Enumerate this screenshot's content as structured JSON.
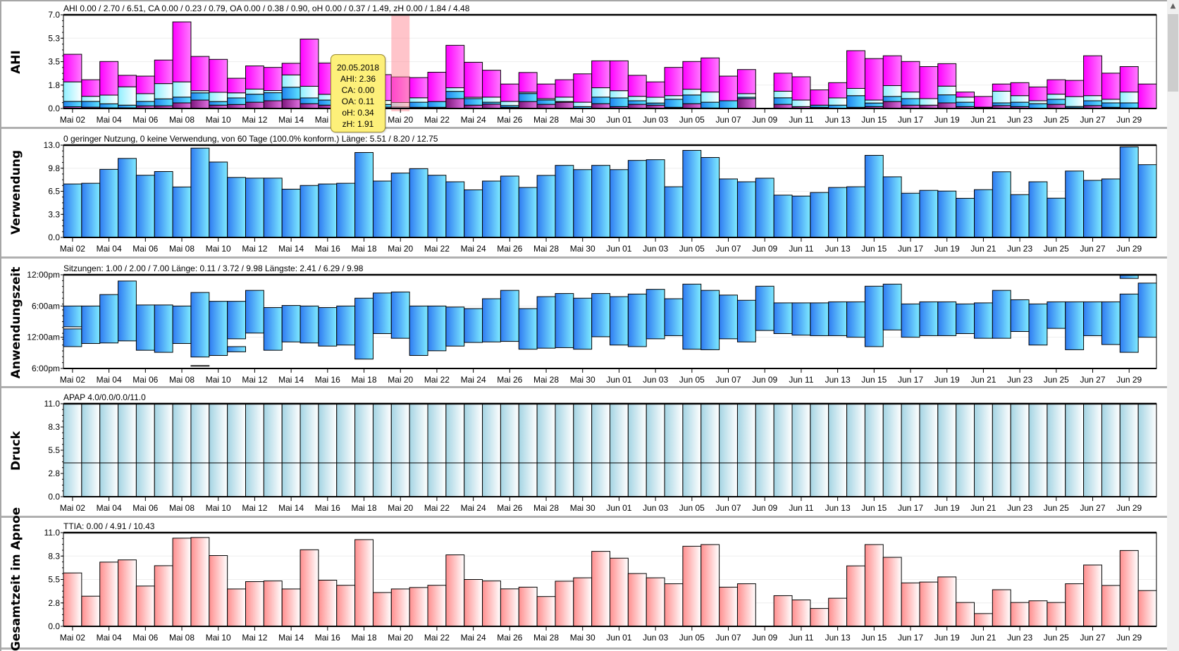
{
  "x_tick_labels": [
    "Mai 02",
    "Mai 04",
    "Mai 06",
    "Mai 08",
    "Mai 10",
    "Mai 12",
    "Mai 14",
    "Mai 16",
    "Mai 18",
    "Mai 20",
    "Mai 22",
    "Mai 24",
    "Mai 26",
    "Mai 28",
    "Mai 30",
    "Jun 01",
    "Jun 03",
    "Jun 05",
    "Jun 07",
    "Jun 09",
    "Jun 11",
    "Jun 13",
    "Jun 15",
    "Jun 17",
    "Jun 19",
    "Jun 21",
    "Jun 23",
    "Jun 25",
    "Jun 27",
    "Jun 29"
  ],
  "tooltip": {
    "date": "20.05.2018",
    "ahi": "AHI: 2.36",
    "ca": "CA: 0.00",
    "oa": "OA: 0.11",
    "oh": "oH: 0.34",
    "zh": "zH: 1.91",
    "highlight_day_index": 18
  },
  "colors": {
    "ca": "#8e1f8e",
    "oa": "#2a8ff0",
    "oh": "#a8f2fc",
    "zh": "#ff1cff",
    "usage": "#3b8cf5",
    "pressure": "#a9d9e6",
    "ttia": "#ff9c9c",
    "highlight": "#ff8a95"
  },
  "chart_data": [
    {
      "type": "bar",
      "stacked": true,
      "title": "AHI",
      "header": "AHI 0.00 / 2.70 / 6.51, CA 0.00 / 0.23 / 0.79, OA 0.00 / 0.38 / 0.90, oH 0.00 / 0.37 / 1.49, zH 0.00 / 1.84 / 4.48",
      "ylim": [
        0,
        7.0
      ],
      "y_ticks": [
        {
          "v": 0,
          "label": "0.0"
        },
        {
          "v": 1.75,
          "label": "1.8"
        },
        {
          "v": 3.5,
          "label": "3.5"
        },
        {
          "v": 5.25,
          "label": "5.3"
        },
        {
          "v": 7.0,
          "label": "7.0"
        }
      ],
      "series": [
        {
          "name": "CA",
          "color_key": "ca",
          "values": [
            0.13,
            0.1,
            0.05,
            0.05,
            0.2,
            0.2,
            0.42,
            0.63,
            0.25,
            0.3,
            0.47,
            0.58,
            0.69,
            0.36,
            0.25,
            0.2,
            0.2,
            0.1,
            0.0,
            0.09,
            0.09,
            0.74,
            0.25,
            0.33,
            0.09,
            0.52,
            0.31,
            0.47,
            0.0,
            0.36,
            0.14,
            0.31,
            0.25,
            0.09,
            0.36,
            0.04,
            0,
            0.74,
            0,
            0.31,
            0.14,
            0.09,
            0,
            0.09,
            0.14,
            0.52,
            0.25,
            0.25,
            0.42,
            0.14,
            0.05,
            0.22,
            0.14,
            0,
            0.31,
            0.05,
            0.22,
            0.09,
            0.04,
            0
          ]
        },
        {
          "name": "OA",
          "color_key": "oa",
          "values": [
            0.4,
            0.43,
            0.3,
            0.2,
            0.33,
            0.52,
            0.43,
            0.54,
            0.27,
            0.49,
            0.6,
            0.6,
            0.9,
            0.43,
            0.38,
            0.3,
            0.3,
            0.2,
            0.11,
            0.38,
            0.43,
            0.54,
            0.49,
            0.14,
            0.13,
            0.6,
            0.33,
            0.05,
            0.14,
            0.49,
            0.65,
            0.27,
            0.16,
            0.6,
            0.65,
            0.43,
            0.58,
            0.1,
            0,
            0.49,
            0,
            0.16,
            0.25,
            0.87,
            0.27,
            0.38,
            0.49,
            0,
            0.6,
            0.33,
            0.05,
            0.2,
            0.33,
            0.36,
            0.38,
            0.1,
            0.36,
            0.33,
            0.38,
            0
          ]
        },
        {
          "name": "oH",
          "color_key": "oh",
          "values": [
            1.46,
            0.38,
            0.65,
            1.37,
            0.58,
            1.14,
            1.14,
            0.16,
            0.69,
            0.38,
            0.38,
            0.16,
            0.92,
            0.87,
            0.43,
            0.4,
            0.4,
            0.3,
            0.34,
            0.33,
            0,
            0.27,
            0.1,
            0.38,
            0.31,
            0.1,
            0.1,
            0.33,
            0.33,
            0.7,
            0.54,
            0.33,
            0.43,
            0.27,
            0.43,
            0.76,
            0,
            0.27,
            0,
            0.49,
            0.49,
            0,
            0.54,
            0.54,
            0.22,
            0.81,
            0.49,
            0.49,
            0.65,
            0.38,
            0,
            0.87,
            0.49,
            0.22,
            0.38,
            0.74,
            0.38,
            0.27,
            0.81,
            0
          ]
        },
        {
          "name": "zH",
          "color_key": "zh",
          "values": [
            2.06,
            1.24,
            2.51,
            0.86,
            1.31,
            1.76,
            4.48,
            2.56,
            2.46,
            1.09,
            1.73,
            1.73,
            0.87,
            3.53,
            2.34,
            2.1,
            1.9,
            1.93,
            1.91,
            1.51,
            2.19,
            3.17,
            2.61,
            2.01,
            1.3,
            1.47,
            1.09,
            1.3,
            2.12,
            2.01,
            2.23,
            1.57,
            1.15,
            2.11,
            2.07,
            2.55,
            1.84,
            1.8,
            0,
            1.35,
            1.74,
            1.14,
            1.14,
            2.82,
            3.1,
            2.23,
            2.28,
            2.39,
            1.68,
            0.38,
            0.8,
            0.54,
            0.97,
            1.03,
            1.08,
            1.21,
            2.98,
            1.95,
            1.9,
            1.83
          ]
        }
      ]
    },
    {
      "type": "bar",
      "title": "Verwendung",
      "header": "0 geringer Nutzung, 0 keine Verwendung, von 60 Tage (100.0% konform.) Länge: 5.51 / 8.20 / 12.75",
      "ylim": [
        0,
        13.0
      ],
      "y_ticks": [
        {
          "v": 0,
          "label": "0.0"
        },
        {
          "v": 3.25,
          "label": "3.3"
        },
        {
          "v": 6.5,
          "label": "6.5"
        },
        {
          "v": 9.75,
          "label": "9.8"
        },
        {
          "v": 13.0,
          "label": "13.0"
        }
      ],
      "color_key": "usage",
      "values": [
        7.53,
        7.63,
        9.59,
        11.13,
        8.76,
        9.28,
        7.11,
        12.58,
        10.62,
        8.45,
        8.35,
        8.35,
        6.8,
        7.32,
        7.53,
        7.63,
        11.96,
        7.94,
        9.07,
        9.69,
        8.76,
        7.84,
        6.7,
        7.94,
        8.64,
        7.04,
        8.74,
        10.15,
        9.55,
        10.15,
        9.55,
        10.85,
        10.95,
        7.14,
        12.26,
        11.26,
        8.24,
        7.84,
        8.34,
        5.96,
        5.83,
        6.33,
        7.04,
        7.14,
        11.56,
        8.54,
        6.23,
        6.63,
        6.53,
        5.51,
        6.73,
        9.25,
        6.03,
        7.84,
        5.53,
        9.35,
        8.04,
        8.24,
        12.75,
        10.25
      ]
    },
    {
      "type": "bar",
      "floating": true,
      "title": "Anwendungszeit",
      "header": "Sitzungen: 1.00 / 2.00 / 7.00 Länge: 0.11 / 3.72 / 9.98 Längste: 2.41 / 6.29 / 9.98",
      "ylim_hours_after_6pm": [
        0,
        18
      ],
      "y_ticks": [
        {
          "v": 0,
          "label": "6:00pm"
        },
        {
          "v": 6,
          "label": "12:00am"
        },
        {
          "v": 12,
          "label": "6:00am"
        },
        {
          "v": 18,
          "label": "12:00pm"
        }
      ],
      "color_key": "usage",
      "sessions": [
        [
          [
            4.2,
            7.6
          ],
          [
            8.0,
            12.0
          ]
        ],
        [
          [
            4.8,
            12.0
          ]
        ],
        [
          [
            4.9,
            14.2
          ]
        ],
        [
          [
            5.3,
            16.8
          ]
        ],
        [
          [
            3.5,
            12.2
          ]
        ],
        [
          [
            3.1,
            12.2
          ]
        ],
        [
          [
            4.8,
            12.0
          ]
        ],
        [
          [
            2.2,
            14.6
          ],
          [
            0.45,
            0.55
          ]
        ],
        [
          [
            2.5,
            12.9
          ]
        ],
        [
          [
            5.7,
            12.9
          ],
          [
            3.2,
            4.2
          ]
        ],
        [
          [
            6.8,
            15.0
          ]
        ],
        [
          [
            3.5,
            11.7
          ]
        ],
        [
          [
            5.1,
            12.1
          ]
        ],
        [
          [
            4.9,
            12.0
          ]
        ],
        [
          [
            4.3,
            11.7
          ]
        ],
        [
          [
            4.5,
            12.0
          ]
        ],
        [
          [
            1.8,
            13.5
          ]
        ],
        [
          [
            6.7,
            14.5
          ]
        ],
        [
          [
            5.8,
            14.7
          ]
        ],
        [
          [
            2.5,
            12.0
          ]
        ],
        [
          [
            3.4,
            12.0
          ]
        ],
        [
          [
            4.3,
            11.8
          ]
        ],
        [
          [
            5.0,
            11.5
          ]
        ],
        [
          [
            5.1,
            13.4
          ]
        ],
        [
          [
            5.2,
            15.0
          ]
        ],
        [
          [
            3.7,
            11.5
          ]
        ],
        [
          [
            3.9,
            13.8
          ]
        ],
        [
          [
            4.0,
            14.4
          ]
        ],
        [
          [
            3.7,
            13.5
          ]
        ],
        [
          [
            6.1,
            14.4
          ]
        ],
        [
          [
            4.5,
            13.8
          ]
        ],
        [
          [
            4.2,
            14.3
          ]
        ],
        [
          [
            5.7,
            15.2
          ]
        ],
        [
          [
            6.3,
            13.4
          ]
        ],
        [
          [
            3.7,
            16.2
          ]
        ],
        [
          [
            3.6,
            15.0
          ]
        ],
        [
          [
            5.7,
            14.1
          ]
        ],
        [
          [
            5.1,
            13.1
          ]
        ],
        [
          [
            7.3,
            15.8
          ]
        ],
        [
          [
            6.7,
            12.6
          ]
        ],
        [
          [
            6.4,
            12.6
          ]
        ],
        [
          [
            6.3,
            12.6
          ]
        ],
        [
          [
            6.3,
            12.8
          ]
        ],
        [
          [
            6.0,
            12.8
          ]
        ],
        [
          [
            4.2,
            15.8
          ]
        ],
        [
          [
            7.4,
            16.2
          ]
        ],
        [
          [
            6.0,
            12.4
          ]
        ],
        [
          [
            6.3,
            12.8
          ]
        ],
        [
          [
            6.3,
            12.8
          ]
        ],
        [
          [
            6.7,
            12.4
          ]
        ],
        [
          [
            5.8,
            12.6
          ]
        ],
        [
          [
            5.8,
            15.0
          ]
        ],
        [
          [
            7.1,
            13.2
          ]
        ],
        [
          [
            4.5,
            12.4
          ]
        ],
        [
          [
            7.7,
            12.8
          ]
        ],
        [
          [
            3.6,
            12.8
          ]
        ],
        [
          [
            6.3,
            12.8
          ]
        ],
        [
          [
            4.6,
            12.8
          ]
        ],
        [
          [
            3.1,
            14.3
          ],
          [
            17.3,
            17.9
          ]
        ],
        [
          [
            6.0,
            16.4
          ]
        ]
      ]
    },
    {
      "type": "bar",
      "title": "Druck",
      "header": "APAP 4.0/0.0/0.0/11.0",
      "ylim": [
        0,
        11.0
      ],
      "y_ticks": [
        {
          "v": 0,
          "label": "0.0"
        },
        {
          "v": 2.75,
          "label": "2.8"
        },
        {
          "v": 5.5,
          "label": "5.5"
        },
        {
          "v": 8.25,
          "label": "8.3"
        },
        {
          "v": 11.0,
          "label": "11.0"
        }
      ],
      "color_key": "pressure",
      "min_pressure": 4.0,
      "max_pressure": 11.0,
      "days": 60
    },
    {
      "type": "bar",
      "title": "Gesamtzeit im Apnoe",
      "header": "TTIA: 0.00 / 4.91 / 10.43",
      "ylim": [
        0,
        11.0
      ],
      "y_ticks": [
        {
          "v": 0,
          "label": "0.0"
        },
        {
          "v": 2.75,
          "label": "2.8"
        },
        {
          "v": 5.5,
          "label": "5.5"
        },
        {
          "v": 8.25,
          "label": "8.3"
        },
        {
          "v": 11.0,
          "label": "11.0"
        }
      ],
      "color_key": "ttia",
      "values": [
        6.27,
        3.54,
        7.54,
        7.8,
        4.73,
        7.12,
        10.35,
        10.43,
        8.31,
        4.39,
        5.25,
        5.33,
        4.39,
        8.99,
        5.42,
        4.82,
        10.18,
        3.97,
        4.39,
        4.56,
        4.82,
        8.39,
        5.5,
        5.33,
        4.4,
        4.6,
        3.5,
        5.3,
        5.7,
        8.8,
        8.0,
        6.2,
        5.7,
        5.0,
        9.4,
        9.6,
        4.6,
        5.0,
        0,
        3.6,
        3.1,
        2.1,
        3.3,
        7.1,
        9.6,
        8.1,
        5.1,
        5.2,
        5.8,
        2.8,
        1.5,
        4.3,
        2.8,
        3.0,
        2.8,
        5.0,
        7.2,
        4.8,
        8.9,
        4.2
      ]
    }
  ]
}
